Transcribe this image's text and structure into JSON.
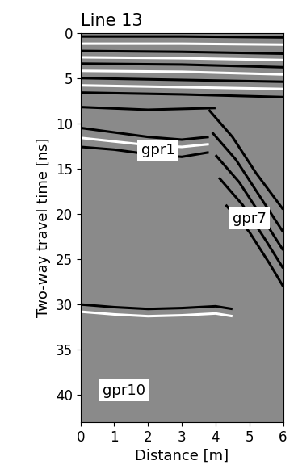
{
  "chart_data": {
    "type": "line",
    "title": "Line 13",
    "x_label": "Distance [m]",
    "y_label": "Two-way travel time [ns]",
    "xlim": [
      0,
      6
    ],
    "ylim": [
      43,
      0
    ],
    "xticks": [
      0,
      1,
      2,
      3,
      4,
      5,
      6
    ],
    "yticks": [
      0,
      5,
      10,
      15,
      20,
      25,
      30,
      35,
      40
    ],
    "color": "#8a8a8a",
    "grid": false,
    "annotations": [
      {
        "text": "gpr1",
        "x": 2.3,
        "y": 13
      },
      {
        "text": "gpr7",
        "x": 5.0,
        "y": 20.5
      },
      {
        "text": "gpr10",
        "x": 1.3,
        "y": 39.5
      }
    ],
    "series": [
      {
        "color": "#000000",
        "x": [
          0,
          3,
          6
        ],
        "values": [
          0.4,
          0.4,
          0.5
        ]
      },
      {
        "color": "#ffffff",
        "x": [
          0,
          3,
          6
        ],
        "values": [
          1.2,
          1.2,
          1.3
        ]
      },
      {
        "color": "#000000",
        "x": [
          0,
          3,
          6
        ],
        "values": [
          2.0,
          2.1,
          2.3
        ]
      },
      {
        "color": "#ffffff",
        "x": [
          0,
          3,
          6
        ],
        "values": [
          2.7,
          2.8,
          3.0
        ]
      },
      {
        "color": "#000000",
        "x": [
          0,
          3,
          6
        ],
        "values": [
          3.4,
          3.5,
          3.8
        ]
      },
      {
        "color": "#ffffff",
        "x": [
          0,
          3,
          6
        ],
        "values": [
          4.2,
          4.3,
          4.6
        ]
      },
      {
        "color": "#000000",
        "x": [
          0,
          3,
          6
        ],
        "values": [
          5.0,
          5.2,
          5.4
        ]
      },
      {
        "color": "#ffffff",
        "x": [
          0,
          3,
          6
        ],
        "values": [
          5.8,
          6.0,
          6.2
        ]
      },
      {
        "color": "#000000",
        "x": [
          0,
          3,
          6
        ],
        "values": [
          6.6,
          6.8,
          7.1
        ]
      },
      {
        "color": "#000000",
        "x": [
          0,
          2,
          4
        ],
        "values": [
          8.2,
          8.5,
          8.3
        ]
      },
      {
        "color": "#000000",
        "x": [
          0,
          1,
          2,
          3,
          3.8
        ],
        "values": [
          10.5,
          11.0,
          11.5,
          11.8,
          11.5
        ]
      },
      {
        "color": "#ffffff",
        "x": [
          0,
          1,
          2,
          3,
          3.8
        ],
        "values": [
          11.6,
          12.0,
          12.4,
          12.6,
          12.3
        ]
      },
      {
        "color": "#000000",
        "x": [
          0,
          1,
          2,
          3,
          3.8
        ],
        "values": [
          12.6,
          12.9,
          13.4,
          13.7,
          13.2
        ]
      },
      {
        "color": "#000000",
        "x": [
          3.8,
          4.5,
          5.2,
          6
        ],
        "values": [
          8.5,
          11.5,
          15.5,
          19.5
        ]
      },
      {
        "color": "#000000",
        "x": [
          3.9,
          4.6,
          5.3,
          6
        ],
        "values": [
          11.0,
          14.0,
          18.0,
          22.0
        ]
      },
      {
        "color": "#000000",
        "x": [
          4.0,
          4.7,
          5.4,
          6
        ],
        "values": [
          13.5,
          16.5,
          20.5,
          24.0
        ]
      },
      {
        "color": "#000000",
        "x": [
          4.1,
          4.8,
          5.5,
          6
        ],
        "values": [
          16.0,
          19.0,
          23.0,
          26.0
        ]
      },
      {
        "color": "#000000",
        "x": [
          4.3,
          5.0,
          5.6,
          6
        ],
        "values": [
          19.0,
          22.0,
          25.5,
          28.0
        ]
      },
      {
        "color": "#000000",
        "x": [
          0,
          1,
          2,
          3,
          4,
          4.5
        ],
        "values": [
          30.0,
          30.3,
          30.5,
          30.4,
          30.2,
          30.5
        ]
      },
      {
        "color": "#ffffff",
        "x": [
          0,
          1,
          2,
          3,
          4,
          4.5
        ],
        "values": [
          30.8,
          31.1,
          31.3,
          31.2,
          31.0,
          31.3
        ]
      }
    ]
  }
}
